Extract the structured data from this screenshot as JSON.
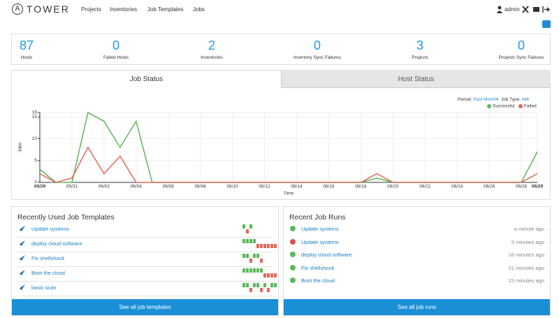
{
  "nav": {
    "logo": "A",
    "brand": "TOWER",
    "links": [
      "Projects",
      "Inventories",
      "Job Templates",
      "Jobs"
    ],
    "user": "admin"
  },
  "counts": [
    {
      "value": 87,
      "label": "Hosts"
    },
    {
      "value": 0,
      "label": "Failed Hosts"
    },
    {
      "value": 2,
      "label": "Inventories"
    },
    {
      "value": 0,
      "label": "Inventory Sync Failures"
    },
    {
      "value": 3,
      "label": "Projects"
    },
    {
      "value": 0,
      "label": "Projects Sync Failures"
    }
  ],
  "tabs": [
    "Job Status",
    "Host Status"
  ],
  "filters": {
    "period_label": "Period:",
    "period": "Past Month",
    "job_type_label": "Job Type:",
    "job_type": "All"
  },
  "chart_data": {
    "type": "line",
    "xlabel": "Time",
    "ylabel": "Jobs",
    "categories": [
      "05/29",
      null,
      "05/31",
      null,
      "06/02",
      null,
      "06/04",
      null,
      "06/06",
      null,
      "06/08",
      null,
      "06/10",
      null,
      "06/12",
      null,
      "06/14",
      null,
      "06/16",
      null,
      "06/18",
      null,
      "06/20",
      null,
      "06/22",
      null,
      "06/24",
      null,
      "06/26",
      null,
      "06/28",
      "06/29"
    ],
    "series": [
      {
        "name": "Successful",
        "color": "#5cb85c",
        "values": [
          3,
          0,
          0,
          16,
          14,
          8,
          14,
          0,
          0,
          0,
          0,
          0,
          0,
          0,
          0,
          0,
          0,
          0,
          0,
          0,
          0,
          1,
          0,
          0,
          0,
          0,
          0,
          0,
          0,
          0,
          0,
          7
        ]
      },
      {
        "name": "Failed",
        "color": "#e5675a",
        "values": [
          2,
          0,
          1,
          8,
          2,
          6,
          0,
          0,
          0,
          0,
          0,
          0,
          0,
          0,
          0,
          0,
          0,
          0,
          0,
          0,
          0,
          2,
          0,
          0,
          0,
          0,
          0,
          0,
          0,
          0,
          0,
          2
        ]
      }
    ],
    "ylim": [
      0,
      16
    ],
    "yticks": [
      0,
      5,
      10,
      15,
      16
    ],
    "grid": true,
    "legend": "top-right"
  },
  "templates": {
    "title": "Recently Used Job Templates",
    "items": [
      "Update systems",
      "deploy cloud software",
      "Fix shellshock",
      "Boot the cloud",
      "basic scan"
    ],
    "button": "See all job templates"
  },
  "runs": {
    "title": "Recent Job Runs",
    "items": [
      {
        "name": "Update systems",
        "time": "a minute ago",
        "color": "#5cb85c"
      },
      {
        "name": "Update systems",
        "time": "5 minutes ago",
        "color": "#d9534f"
      },
      {
        "name": "deploy cloud software",
        "time": "16 minutes ago",
        "color": "#5cb85c"
      },
      {
        "name": "Fix shellshock",
        "time": "21 minutes ago",
        "color": "#5cb85c"
      },
      {
        "name": "Boot the cloud",
        "time": "23 minutes ago",
        "color": "#5cb85c"
      }
    ],
    "button": "See all job runs"
  }
}
